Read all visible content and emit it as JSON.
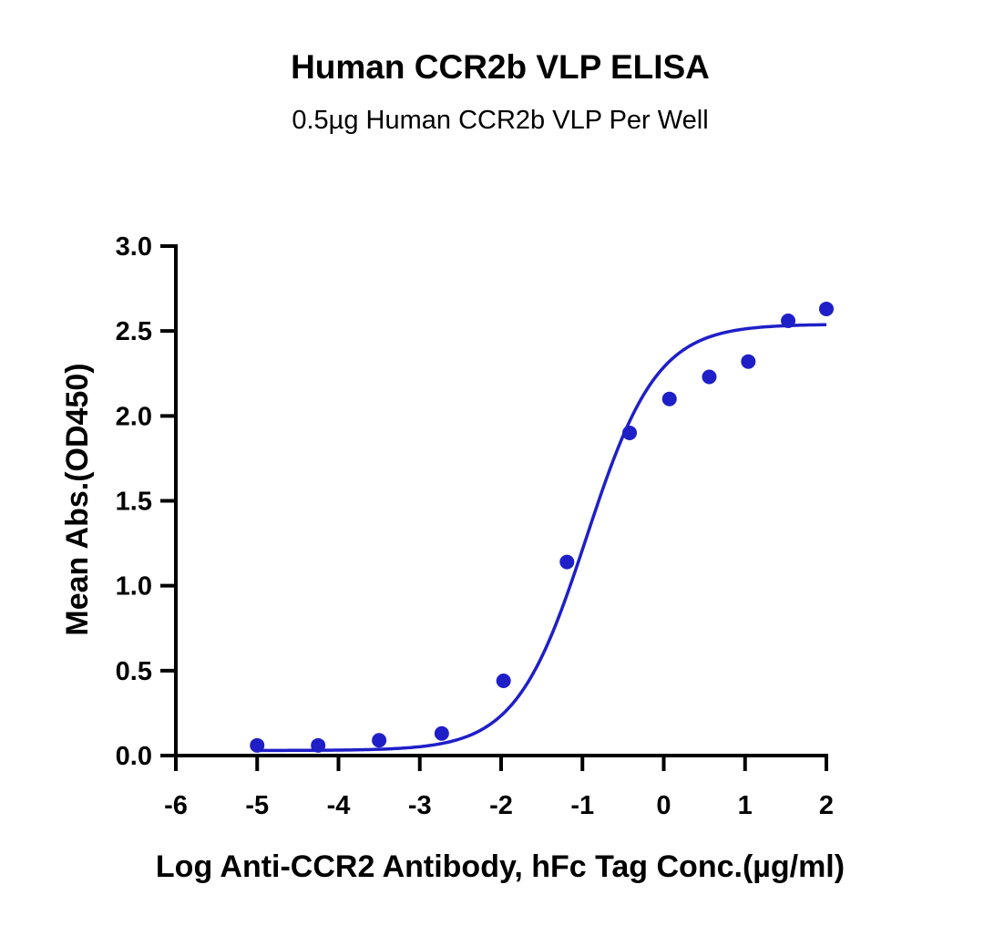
{
  "chart_data": {
    "type": "scatter",
    "title": "Human CCR2b VLP ELISA",
    "subtitle": "0.5µg Human CCR2b VLP Per Well",
    "xlabel": "Log Anti-CCR2 Antibody, hFc Tag Conc.(µg/ml)",
    "ylabel": "Mean Abs.(OD450)",
    "xlim": [
      -6,
      2
    ],
    "ylim": [
      0,
      3
    ],
    "x_ticks": [
      -6,
      -5,
      -4,
      -3,
      -2,
      -1,
      0,
      1,
      2
    ],
    "x_tick_labels": [
      "-6",
      "-5",
      "-4",
      "-3",
      "-2",
      "-1",
      "0",
      "1",
      "2"
    ],
    "y_ticks": [
      0,
      0.5,
      1,
      1.5,
      2,
      2.5,
      3
    ],
    "y_tick_labels": [
      "0.0",
      "0.5",
      "1.0",
      "1.5",
      "2.0",
      "2.5",
      "3.0"
    ],
    "grid": false,
    "color": "#1f1fc8",
    "series": [
      {
        "points": [
          {
            "x": -5.0,
            "y": 0.06
          },
          {
            "x": -4.25,
            "y": 0.06
          },
          {
            "x": -3.5,
            "y": 0.09
          },
          {
            "x": -2.73,
            "y": 0.13
          },
          {
            "x": -1.97,
            "y": 0.44
          },
          {
            "x": -1.19,
            "y": 1.14
          },
          {
            "x": -0.42,
            "y": 1.9
          },
          {
            "x": 0.07,
            "y": 2.1
          },
          {
            "x": 0.56,
            "y": 2.23
          },
          {
            "x": 1.04,
            "y": 2.32
          },
          {
            "x": 1.53,
            "y": 2.56
          },
          {
            "x": 2.0,
            "y": 2.63
          }
        ],
        "fit": {
          "model": "4PL",
          "bottom": 0.03,
          "top": 2.54,
          "log_ec50": -0.95,
          "hill_slope": 1.0,
          "x_range": [
            -5.0,
            2.0
          ]
        }
      }
    ]
  }
}
